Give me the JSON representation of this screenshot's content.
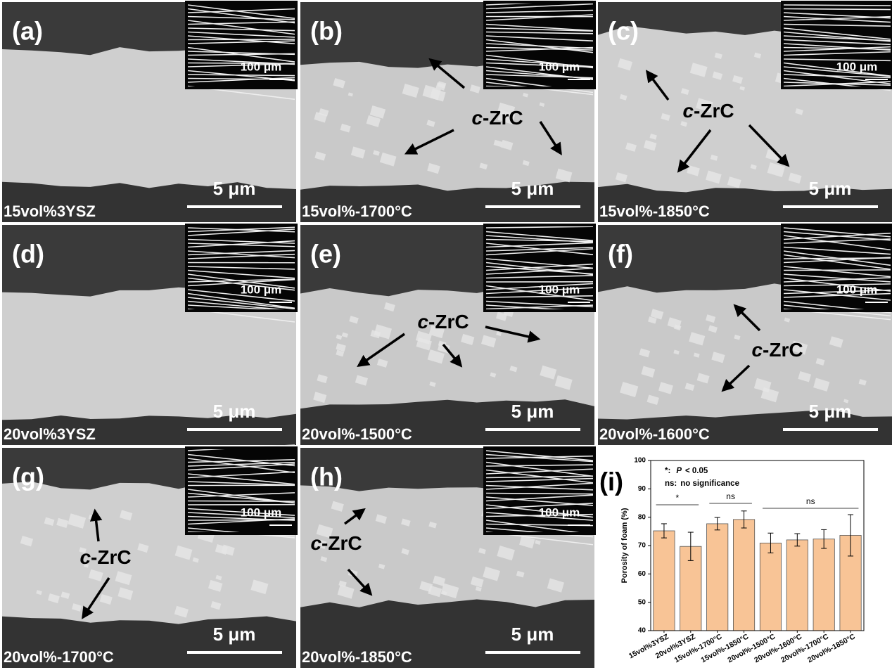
{
  "panels": [
    {
      "label": "(a)",
      "sample": "15vol%3YSZ",
      "scale": "5 μm",
      "inset_scale": "100 μm"
    },
    {
      "label": "(b)",
      "sample": "15vol%-1700°C",
      "scale": "5 μm",
      "inset_scale": "100 μm",
      "annotation": {
        "italic": "c",
        "text": "-ZrC"
      }
    },
    {
      "label": "(c)",
      "sample": "15vol%-1850°C",
      "scale": "5 μm",
      "inset_scale": "100 μm",
      "annotation": {
        "italic": "c",
        "text": "-ZrC"
      }
    },
    {
      "label": "(d)",
      "sample": "20vol%3YSZ",
      "scale": "5 μm",
      "inset_scale": "100 μm"
    },
    {
      "label": "(e)",
      "sample": "20vol%-1500°C",
      "scale": "5 μm",
      "inset_scale": "100 μm",
      "annotation": {
        "italic": "c",
        "text": "-ZrC"
      }
    },
    {
      "label": "(f)",
      "sample": "20vol%-1600°C",
      "scale": "5 μm",
      "inset_scale": "100 μm",
      "annotation": {
        "italic": "c",
        "text": "-ZrC"
      }
    },
    {
      "label": "(g)",
      "sample": "20vol%-1700°C",
      "scale": "5 μm",
      "inset_scale": "100 μm",
      "annotation": {
        "italic": "c",
        "text": "-ZrC"
      }
    },
    {
      "label": "(h)",
      "sample": "20vol%-1850°C",
      "scale": "5 μm",
      "inset_scale": "100 μm",
      "annotation": {
        "italic": "c",
        "text": "-ZrC"
      }
    }
  ],
  "chart_data": {
    "type": "bar",
    "panel_label": "(i)",
    "ylabel": "Porosity of foam (%)",
    "categories": [
      "15vol%3YSZ",
      "20vol%3YSZ",
      "15vol%-1700°C",
      "15vol%-1850°C",
      "20vol%-1500°C",
      "20vol%-1600°C",
      "20vol%-1700°C",
      "20vol%-1850°C"
    ],
    "values": [
      75.2,
      69.7,
      77.7,
      79.2,
      70.9,
      72.0,
      72.3,
      73.6
    ],
    "errors": [
      2.5,
      5.0,
      2.2,
      3.0,
      3.5,
      2.2,
      3.3,
      7.3
    ],
    "color": "#f8c496",
    "ylim": [
      40,
      100
    ],
    "yticks": [
      40,
      50,
      60,
      70,
      80,
      90,
      100
    ],
    "notes": [
      {
        "key": "*:",
        "italic": "P",
        "text": "< 0.05"
      },
      {
        "key": "ns:",
        "text": "no significance"
      }
    ],
    "brackets": [
      "*",
      "ns",
      "ns"
    ]
  }
}
